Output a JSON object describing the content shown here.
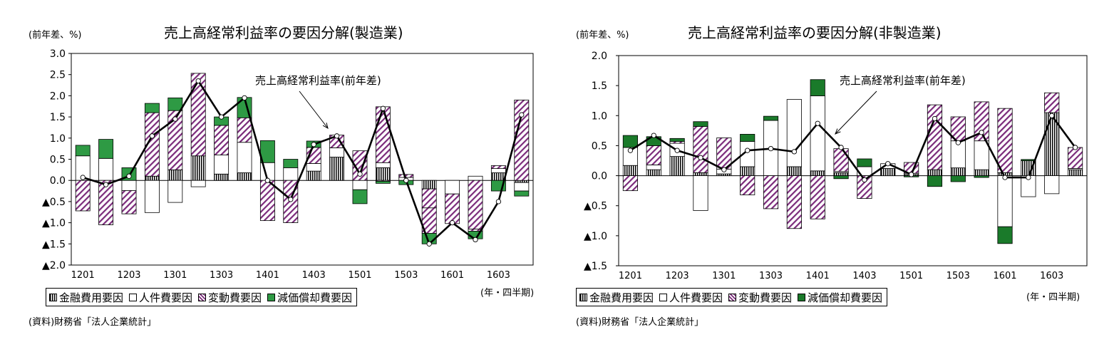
{
  "chart_data": [
    {
      "type": "bar",
      "title": "売上高経常利益率の要因分解(製造業)",
      "ylabel": "(前年差、%)",
      "xlabel": "(年・四半期)",
      "source": "(資料)財務省「法人企業統計」",
      "ylim": [
        -2.0,
        3.0
      ],
      "yticks": [
        3.0,
        2.5,
        2.0,
        1.5,
        1.0,
        0.5,
        0.0,
        -0.5,
        -1.0,
        -1.5,
        -2.0
      ],
      "ytick_labels": [
        "3.0",
        "2.5",
        "2.0",
        "1.5",
        "1.0",
        "0.5",
        "0.0",
        "▲0.5",
        "▲1.0",
        "▲1.5",
        "▲2.0"
      ],
      "categories": [
        "1201",
        "1202",
        "1203",
        "1204",
        "1301",
        "1302",
        "1303",
        "1304",
        "1401",
        "1402",
        "1403",
        "1404",
        "1501",
        "1502",
        "1503",
        "1504",
        "1601",
        "1602",
        "1603",
        "1604"
      ],
      "xtick_labels": [
        "1201",
        "1203",
        "1301",
        "1303",
        "1401",
        "1403",
        "1501",
        "1503",
        "1601",
        "1603"
      ],
      "annotation": "売上高経常利益率(前年差)",
      "legend": [
        "金融費用要因",
        "人件費要因",
        "変動費要因",
        "減価償却費要因"
      ],
      "series": [
        {
          "name": "金融費用要因",
          "values": [
            0.0,
            0.0,
            0.0,
            0.1,
            0.25,
            0.58,
            0.15,
            0.18,
            0.0,
            0.0,
            0.22,
            0.55,
            0.0,
            0.3,
            0.0,
            -0.2,
            0.0,
            0.0,
            0.18,
            -0.05
          ]
        },
        {
          "name": "人件費要因",
          "values": [
            0.58,
            0.52,
            -0.24,
            -0.76,
            -0.52,
            -0.15,
            0.45,
            0.72,
            0.42,
            0.3,
            0.18,
            0.22,
            -0.22,
            0.12,
            0.07,
            0.0,
            -0.32,
            0.1,
            0.1,
            -0.2
          ]
        },
        {
          "name": "変動費要因",
          "values": [
            -0.72,
            -1.05,
            -0.55,
            1.5,
            1.4,
            1.95,
            0.7,
            0.58,
            -0.95,
            -1.0,
            0.38,
            0.3,
            0.7,
            1.32,
            0.07,
            -0.45,
            -0.7,
            -1.15,
            0.07,
            1.9
          ],
          "extra_negative": [
            0.0,
            0.0,
            0.0,
            0.0,
            0.0,
            0.0,
            0.0,
            0.0,
            0.0,
            0.0,
            0.0,
            0.0,
            0.0,
            -0.02,
            0.0,
            -0.6,
            0.0,
            -0.05,
            0.0,
            0.0
          ]
        },
        {
          "name": "減価償却費要因",
          "values": [
            0.25,
            0.45,
            0.3,
            0.22,
            0.3,
            0.0,
            0.2,
            0.48,
            0.52,
            0.2,
            0.15,
            0.0,
            -0.33,
            -0.05,
            -0.1,
            -0.25,
            0.0,
            -0.18,
            -0.25,
            -0.12
          ]
        },
        {
          "name": "売上高経常利益率(前年差)",
          "type": "line",
          "values": [
            0.07,
            -0.1,
            0.1,
            1.05,
            1.45,
            2.35,
            1.5,
            1.95,
            0.0,
            -0.45,
            0.85,
            1.05,
            0.15,
            1.7,
            0.0,
            -1.5,
            -1.0,
            -1.4,
            -0.5,
            1.55
          ]
        }
      ]
    },
    {
      "type": "bar",
      "title": "売上高経常利益率の要因分解(非製造業)",
      "ylabel": "(前年差、%)",
      "xlabel": "(年・四半期)",
      "source": "(資料)財務省「法人企業統計」",
      "ylim": [
        -1.5,
        2.0
      ],
      "yticks": [
        2.0,
        1.5,
        1.0,
        0.5,
        0.0,
        -0.5,
        -1.0,
        -1.5
      ],
      "ytick_labels": [
        "2.0",
        "1.5",
        "1.0",
        "0.5",
        "0.0",
        "▲0.5",
        "▲1.0",
        "▲1.5"
      ],
      "categories": [
        "1201",
        "1202",
        "1203",
        "1204",
        "1301",
        "1302",
        "1303",
        "1304",
        "1401",
        "1402",
        "1403",
        "1404",
        "1501",
        "1502",
        "1503",
        "1504",
        "1601",
        "1602",
        "1603",
        "1604"
      ],
      "xtick_labels": [
        "1201",
        "1203",
        "1301",
        "1303",
        "1401",
        "1403",
        "1501",
        "1503",
        "1601",
        "1603"
      ],
      "annotation": "売上高経常利益率(前年差)",
      "legend": [
        "金融費用要因",
        "人件費要因",
        "変動費要因",
        "減価償却費要因"
      ],
      "series": [
        {
          "name": "金融費用要因",
          "values": [
            0.17,
            0.1,
            0.32,
            0.05,
            0.03,
            0.15,
            0.0,
            0.15,
            0.08,
            0.05,
            0.0,
            0.12,
            0.02,
            0.1,
            0.13,
            0.1,
            0.05,
            0.25,
            1.05,
            0.1
          ]
        },
        {
          "name": "人件費要因",
          "values": [
            0.3,
            0.08,
            0.22,
            -0.58,
            0.08,
            0.42,
            0.92,
            1.12,
            1.25,
            0.02,
            0.15,
            0.08,
            0.02,
            0.0,
            0.45,
            0.48,
            -0.85,
            -0.35,
            -0.3,
            0.02
          ]
        },
        {
          "name": "変動費要因",
          "values": [
            -0.25,
            0.32,
            0.03,
            0.77,
            0.52,
            -0.32,
            -0.55,
            -0.88,
            -0.72,
            0.38,
            -0.38,
            0.0,
            0.18,
            1.08,
            0.4,
            0.65,
            1.07,
            0.0,
            0.33,
            0.35
          ]
        },
        {
          "name": "減価償却費要因",
          "values": [
            0.2,
            0.15,
            0.05,
            0.08,
            0.0,
            0.12,
            0.07,
            0.0,
            0.27,
            -0.05,
            0.13,
            0.0,
            -0.02,
            -0.18,
            -0.1,
            -0.03,
            -0.28,
            0.02,
            0.0,
            0.0
          ]
        },
        {
          "name": "売上高経常利益率(前年差)",
          "type": "line",
          "values": [
            0.42,
            0.67,
            0.42,
            0.3,
            0.1,
            0.42,
            0.45,
            0.4,
            0.87,
            0.47,
            -0.07,
            0.2,
            0.02,
            0.95,
            0.55,
            0.72,
            -0.03,
            -0.03,
            1.0,
            0.47
          ]
        }
      ]
    }
  ]
}
